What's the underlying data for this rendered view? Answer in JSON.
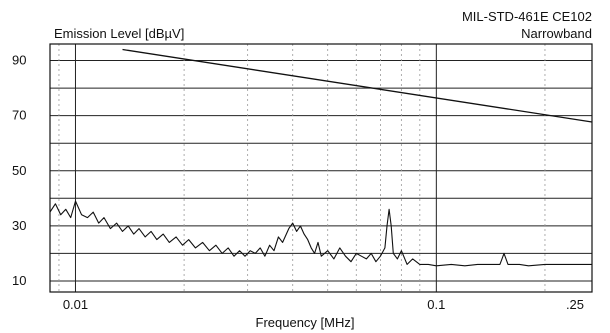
{
  "chart_data": {
    "type": "line",
    "title": "MIL-STD-461E CE102",
    "subtitle": "Narrowband",
    "ylabel": "Emission Level [dBµV]",
    "xlabel": "Frequency [MHz]",
    "x_scale": "log",
    "xlim": [
      0.0085,
      0.27
    ],
    "ylim": [
      6,
      96
    ],
    "x_ticks": [
      {
        "value": 0.01,
        "label": "0.01"
      },
      {
        "value": 0.1,
        "label": "0.1"
      },
      {
        "value": 0.25,
        "label": ".25"
      }
    ],
    "y_ticks": [
      {
        "value": 90,
        "label": "90"
      },
      {
        "value": 70,
        "label": "70"
      },
      {
        "value": 50,
        "label": "50"
      },
      {
        "value": 30,
        "label": "30"
      },
      {
        "value": 10,
        "label": "10"
      }
    ],
    "y_gridlines": [
      10,
      20,
      30,
      40,
      50,
      60,
      70,
      80,
      90
    ],
    "grid": true,
    "series": [
      {
        "role": "limit",
        "color": "#111111",
        "x": [
          0.0135,
          0.27
        ],
        "y": [
          94,
          67.7
        ]
      },
      {
        "role": "measured",
        "color": "#111111",
        "x": [
          0.0085,
          0.0088,
          0.0091,
          0.0094,
          0.0097,
          0.01,
          0.0104,
          0.0108,
          0.0112,
          0.0116,
          0.012,
          0.0125,
          0.013,
          0.0135,
          0.014,
          0.0145,
          0.015,
          0.0156,
          0.0162,
          0.0168,
          0.0175,
          0.0182,
          0.019,
          0.0198,
          0.0206,
          0.0215,
          0.0225,
          0.0235,
          0.0245,
          0.0255,
          0.0265,
          0.0275,
          0.0285,
          0.0295,
          0.0305,
          0.0315,
          0.0325,
          0.0335,
          0.0345,
          0.0355,
          0.0365,
          0.0375,
          0.039,
          0.04,
          0.041,
          0.042,
          0.043,
          0.044,
          0.045,
          0.046,
          0.047,
          0.048,
          0.05,
          0.052,
          0.054,
          0.056,
          0.058,
          0.06,
          0.062,
          0.064,
          0.066,
          0.068,
          0.07,
          0.072,
          0.073,
          0.074,
          0.075,
          0.076,
          0.078,
          0.08,
          0.083,
          0.086,
          0.09,
          0.095,
          0.1,
          0.11,
          0.12,
          0.13,
          0.14,
          0.15,
          0.152,
          0.154,
          0.156,
          0.158,
          0.16,
          0.17,
          0.18,
          0.2,
          0.22,
          0.25,
          0.27
        ],
        "y": [
          35,
          38,
          34,
          36,
          33,
          39,
          34,
          33,
          35,
          31,
          33,
          29,
          31,
          28,
          30,
          27,
          29,
          26,
          28,
          25,
          27,
          24,
          26,
          23,
          25,
          22,
          24,
          21,
          23,
          20,
          22,
          19,
          21,
          19,
          21,
          20,
          22,
          19,
          23,
          21,
          26,
          24,
          29,
          31,
          28,
          30,
          27,
          25,
          22,
          20,
          24,
          19,
          21,
          18,
          22,
          19,
          17,
          20,
          19,
          18,
          20,
          17,
          19,
          22,
          30,
          36,
          30,
          20,
          18,
          21,
          16,
          18,
          16,
          16,
          15.5,
          16,
          15.5,
          16,
          16,
          16,
          18,
          20,
          18,
          16,
          16,
          16,
          15.5,
          16,
          16,
          16,
          16
        ]
      }
    ]
  }
}
